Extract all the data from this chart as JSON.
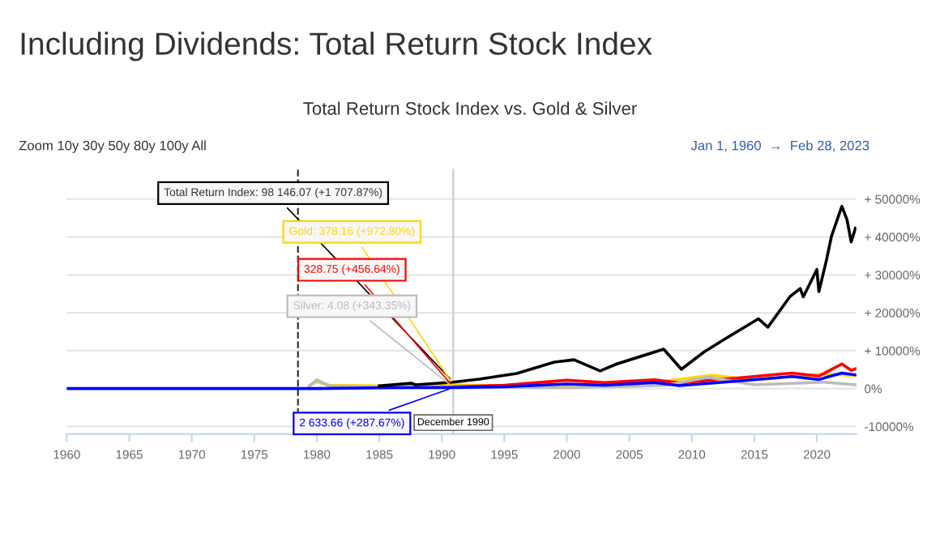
{
  "chart_data": {
    "type": "line",
    "title": "Including Dividends: Total Return Stock Index",
    "subtitle": "Total Return Stock Index vs. Gold & Silver",
    "annotations": [
      "Zoom 10y 30y 50y 80y 100y All",
      "Jan 1, 1960  →  Feb 28, 2023",
      {
        "text": "Total Return Index: 98 146.07 (+1 707.87%)",
        "x": "1990-12",
        "y": 1707.87
      },
      {
        "text": "Gold: 378.16 (+972.80%)",
        "x": "1990-12",
        "y": 972.8
      },
      {
        "text": "328.75 (+456.64%)",
        "x": "1990-12",
        "y": 456.64
      },
      {
        "text": "Silver: 4.08 (+343.35%)",
        "x": "1990-12",
        "y": 343.35
      },
      {
        "text": "2 633.66 (+287.67%)",
        "x": "1990-12",
        "y": 287.67
      }
    ],
    "series": [
      {
        "color": "#000000",
        "x": [
          "1985",
          "1987-08",
          "1987-12",
          "1990-12",
          "1993",
          "1996",
          "1999",
          "2000-08",
          "2002-09",
          "2004",
          "2007-10",
          "2009-03",
          "2011",
          "2012-10",
          "2015-05",
          "2016-02",
          "2017-11",
          "2018-09",
          "2018-12",
          "2020-01",
          "2020-03",
          "2020-10",
          "2021-03",
          "2022-01",
          "2022-06",
          "2022-10",
          "2023-02"
        ],
        "values": [
          700,
          1400,
          1000,
          1708,
          2500,
          4000,
          7000,
          7600,
          4650,
          6500,
          10400,
          5100,
          9700,
          13300,
          18400,
          16200,
          24200,
          26400,
          24200,
          31400,
          25600,
          33600,
          40100,
          48100,
          44500,
          38700,
          42300
        ]
      },
      {
        "color": "#ffd700",
        "x": [
          "1979-06",
          "1980-01",
          "1981",
          "1985",
          "1990-12",
          "1995",
          "2000",
          "2005",
          "2008",
          "2011-08",
          "2015",
          "2020-08",
          "2023-02"
        ],
        "values": [
          800,
          1800,
          900,
          700,
          973,
          800,
          500,
          900,
          2000,
          3500,
          2300,
          3800,
          3500
        ]
      },
      {
        "color": "#ff0000",
        "x": [
          "1990-12",
          "1995",
          "2000",
          "2003",
          "2007",
          "2009",
          "2013",
          "2018",
          "2020-03",
          "2022-01",
          "2022-10",
          "2023-02"
        ],
        "values": [
          457,
          900,
          2200,
          1600,
          2300,
          1500,
          2600,
          4100,
          3300,
          6500,
          4800,
          5200
        ]
      },
      {
        "color": "#bbbbbb",
        "x": [
          "1979-06",
          "1980-01",
          "1981",
          "1985",
          "1990-12",
          "1995",
          "2000",
          "2006",
          "2008",
          "2011-04",
          "2015",
          "2020-08",
          "2023-02"
        ],
        "values": [
          700,
          2300,
          700,
          400,
          343,
          300,
          250,
          700,
          900,
          3000,
          1000,
          1700,
          1000
        ]
      },
      {
        "color": "#0000ff",
        "x": [
          "1960",
          "1970",
          "1975",
          "1980",
          "1985",
          "1990-12",
          "1995",
          "2000",
          "2003",
          "2007",
          "2009",
          "2013",
          "2018",
          "2020-03",
          "2022-01",
          "2023-02"
        ],
        "values": [
          0,
          0,
          0,
          0,
          200,
          288,
          500,
          1200,
          900,
          1600,
          800,
          1800,
          3200,
          2400,
          4100,
          3600
        ]
      }
    ],
    "xlim": [
      "1960-01-01",
      "2023-02-28"
    ],
    "xticks": [
      "1960",
      "1965",
      "1970",
      "1975",
      "1980",
      "1985",
      "1990",
      "1995",
      "2000",
      "2005",
      "2010",
      "2015",
      "2020"
    ],
    "ylim": [
      -12000,
      58000
    ],
    "yticks": [
      {
        "value": -10000,
        "label": "-10000%"
      },
      {
        "value": 0,
        "label": "0%"
      },
      {
        "value": 10000,
        "label": "+ 10000%"
      },
      {
        "value": 20000,
        "label": "+ 20000%"
      },
      {
        "value": 30000,
        "label": "+ 30000%"
      },
      {
        "value": 40000,
        "label": "+ 40000%"
      },
      {
        "value": 50000,
        "label": "+ 50000%"
      }
    ],
    "ref_lines": [
      {
        "axis": "x",
        "value": "1978-07",
        "line_style": "dashed",
        "color": "#333333"
      },
      {
        "axis": "x",
        "value": "1990-12",
        "label": "December 1990",
        "line_style": "solid",
        "color": "#cccccc"
      }
    ],
    "grid": "y",
    "legend": false,
    "marker": "none",
    "line_style": "solid"
  }
}
